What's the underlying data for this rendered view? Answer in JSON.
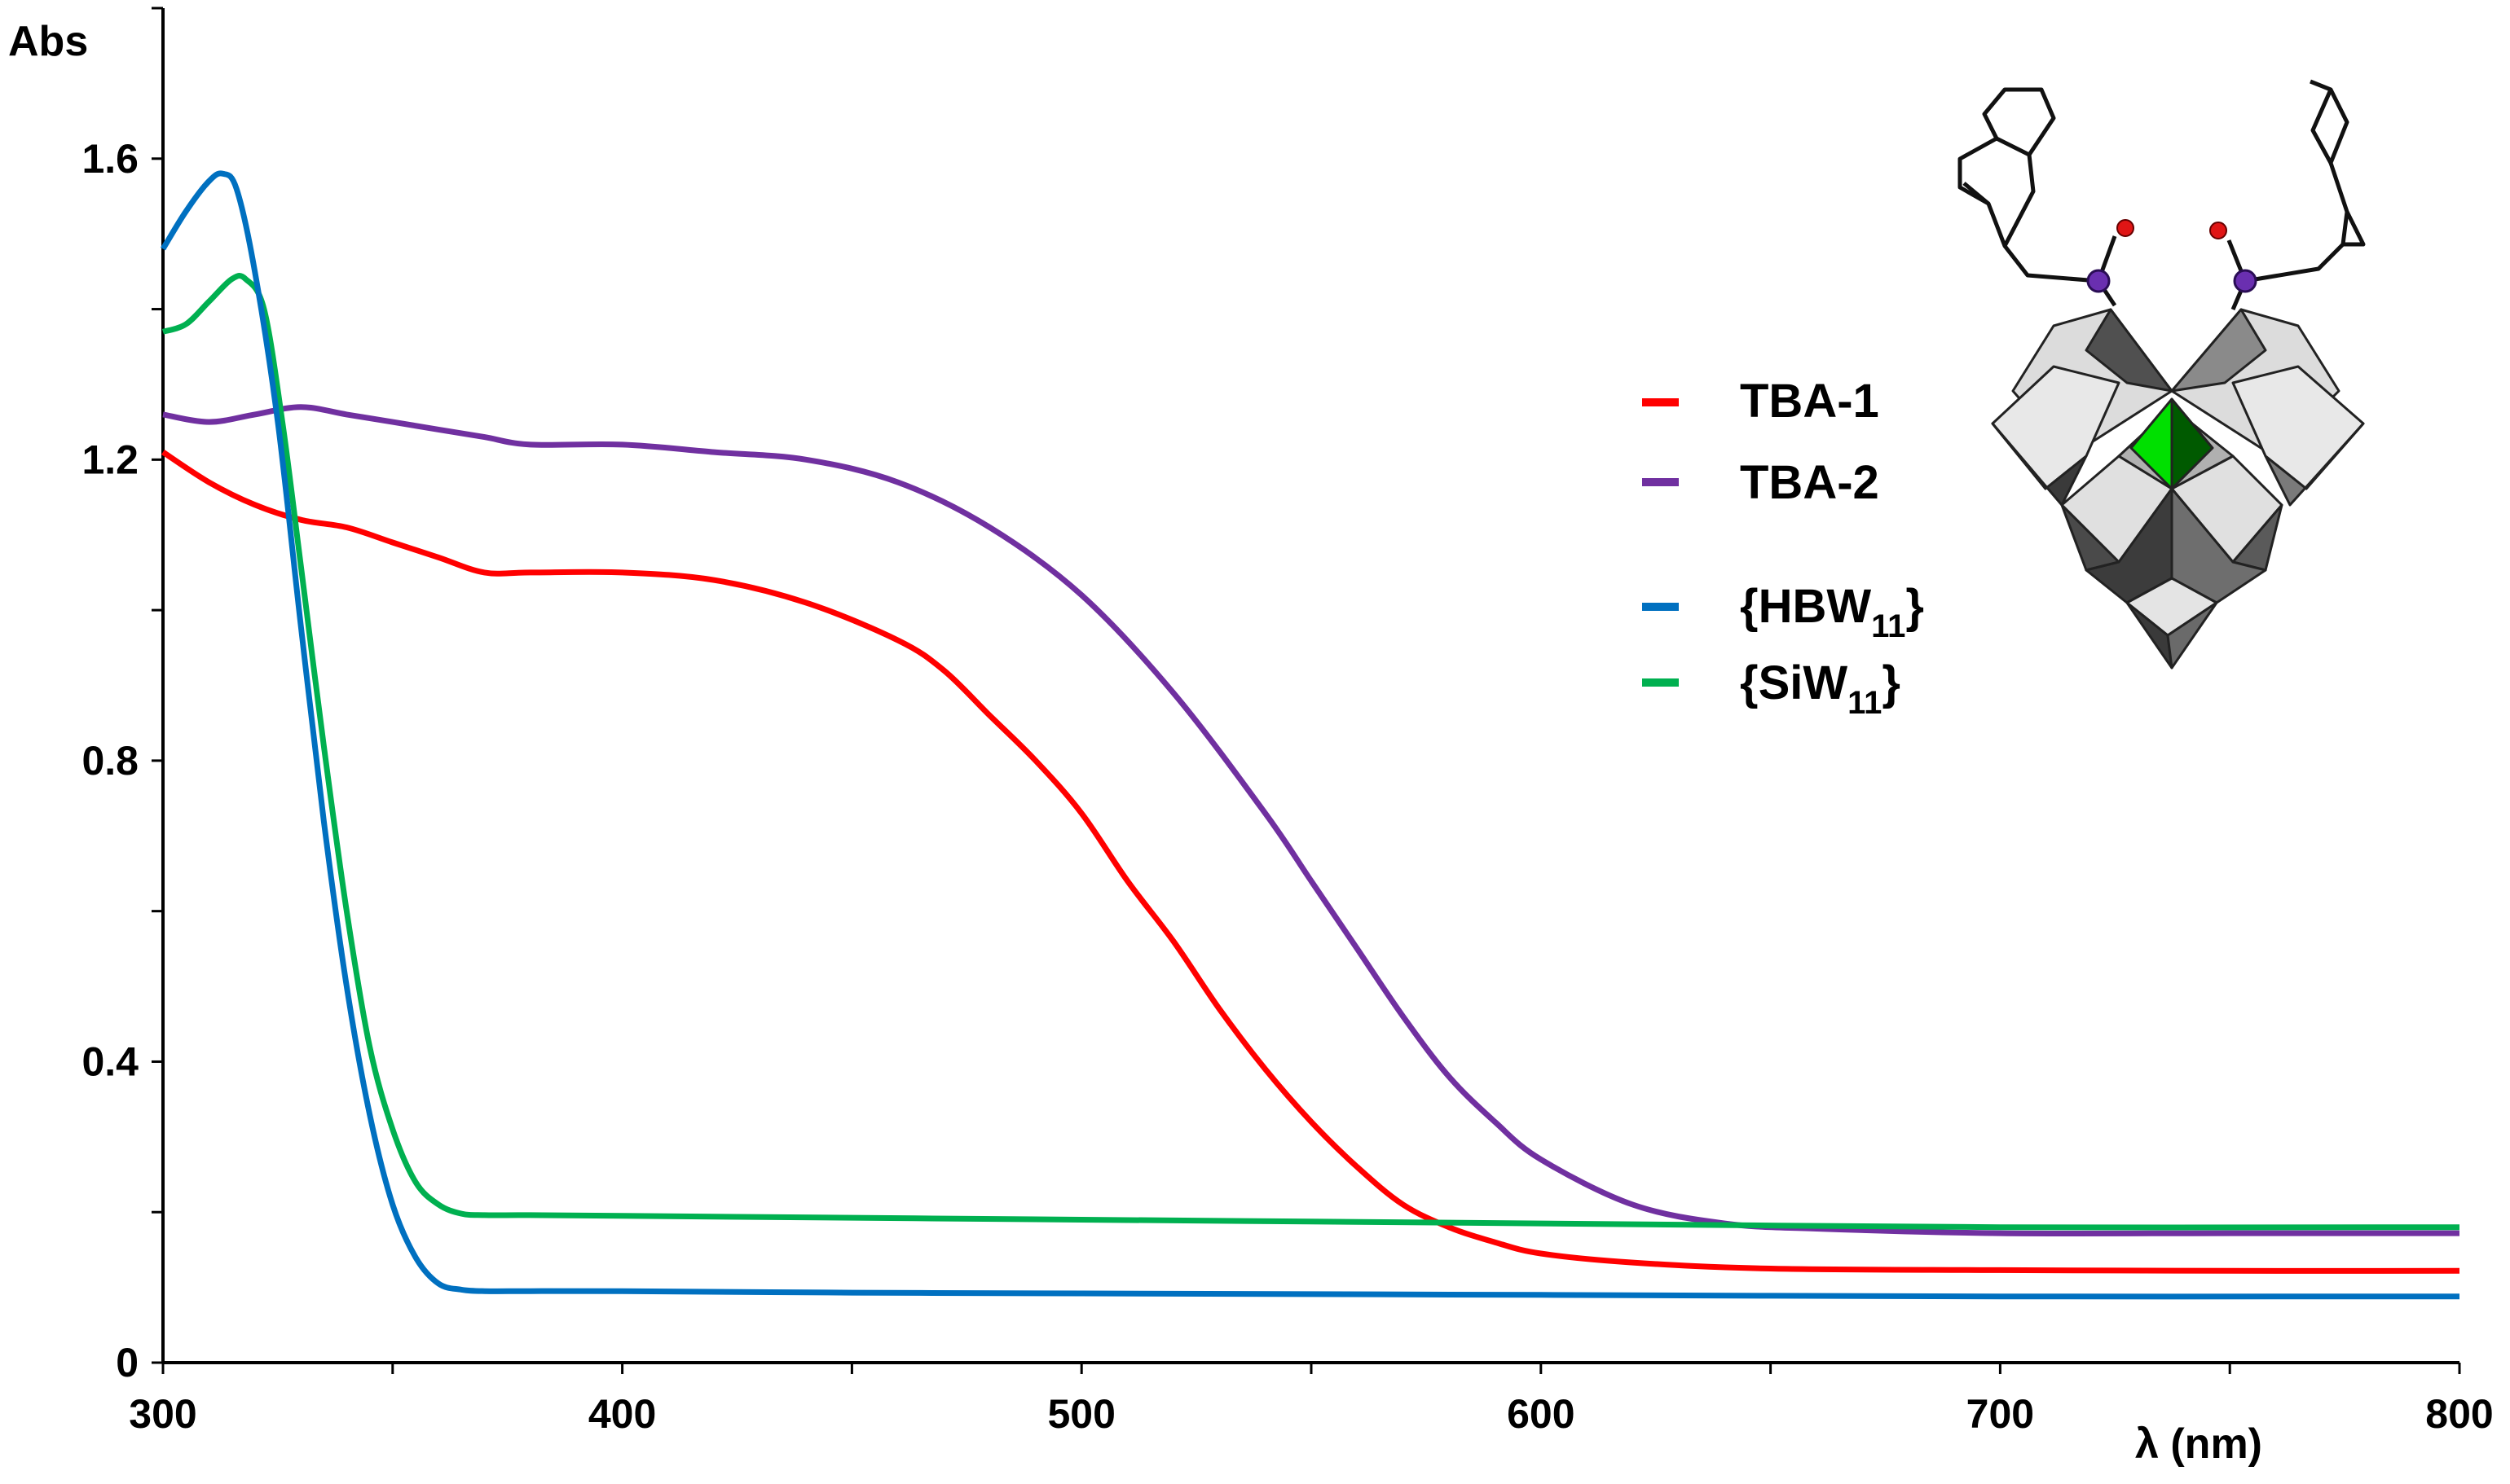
{
  "chart_data": {
    "type": "line",
    "title": "",
    "xlabel": "λ (nm)",
    "ylabel": "Abs",
    "xlim": [
      300,
      800
    ],
    "ylim": [
      0,
      1.8
    ],
    "grid": false,
    "x_ticks": [
      300,
      400,
      500,
      600,
      700,
      800
    ],
    "x_tick_labels": [
      "300",
      "400",
      "500",
      "600",
      "700",
      "800"
    ],
    "y_ticks": [
      0,
      0.4,
      0.8,
      1.2,
      1.6
    ],
    "y_tick_labels": [
      "0",
      "0.4",
      "0.8",
      "1.2",
      "1.6"
    ],
    "legend_position": "top-right",
    "series": [
      {
        "name": "TBA-1",
        "color": "#ff0000",
        "x": [
          300,
          310,
          320,
          330,
          340,
          350,
          360,
          370,
          380,
          400,
          420,
          440,
          460,
          470,
          480,
          490,
          500,
          510,
          520,
          530,
          540,
          550,
          560,
          570,
          580,
          590,
          600,
          620,
          650,
          700,
          750,
          800
        ],
        "y": [
          1.21,
          1.17,
          1.14,
          1.12,
          1.11,
          1.09,
          1.07,
          1.05,
          1.05,
          1.05,
          1.04,
          1.01,
          0.96,
          0.92,
          0.86,
          0.8,
          0.73,
          0.64,
          0.56,
          0.47,
          0.39,
          0.32,
          0.26,
          0.21,
          0.18,
          0.16,
          0.145,
          0.133,
          0.125,
          0.123,
          0.122,
          0.122
        ]
      },
      {
        "name": "TBA-2",
        "color": "#7030a0",
        "x": [
          300,
          310,
          320,
          330,
          340,
          350,
          360,
          370,
          380,
          400,
          420,
          440,
          460,
          480,
          500,
          520,
          540,
          550,
          560,
          570,
          580,
          590,
          600,
          620,
          640,
          660,
          700,
          750,
          800
        ],
        "y": [
          1.26,
          1.25,
          1.26,
          1.27,
          1.26,
          1.25,
          1.24,
          1.23,
          1.22,
          1.22,
          1.21,
          1.2,
          1.17,
          1.11,
          1.02,
          0.89,
          0.73,
          0.64,
          0.55,
          0.46,
          0.38,
          0.32,
          0.27,
          0.21,
          0.185,
          0.178,
          0.172,
          0.172,
          0.172
        ]
      },
      {
        "name": "{HBW11}",
        "label_main": "{HBW",
        "label_sub": "11",
        "label_close": "}",
        "color": "#0070c0",
        "x": [
          300,
          305,
          310,
          313,
          316,
          320,
          325,
          330,
          335,
          340,
          345,
          350,
          355,
          360,
          365,
          370,
          380,
          400,
          450,
          500,
          600,
          700,
          800
        ],
        "y": [
          1.48,
          1.53,
          1.57,
          1.58,
          1.56,
          1.45,
          1.25,
          0.98,
          0.72,
          0.5,
          0.33,
          0.21,
          0.14,
          0.105,
          0.097,
          0.095,
          0.095,
          0.095,
          0.093,
          0.092,
          0.09,
          0.088,
          0.088
        ]
      },
      {
        "name": "{SiW11}",
        "label_main": "{SiW",
        "label_sub": "11",
        "label_close": "}",
        "color": "#00b050",
        "x": [
          300,
          305,
          310,
          315,
          318,
          322,
          326,
          330,
          335,
          340,
          345,
          350,
          355,
          360,
          365,
          370,
          380,
          400,
          500,
          600,
          700,
          800
        ],
        "y": [
          1.37,
          1.38,
          1.41,
          1.44,
          1.44,
          1.4,
          1.25,
          1.06,
          0.82,
          0.6,
          0.42,
          0.31,
          0.24,
          0.21,
          0.198,
          0.196,
          0.196,
          0.195,
          0.19,
          0.185,
          0.18,
          0.18
        ]
      }
    ]
  }
}
